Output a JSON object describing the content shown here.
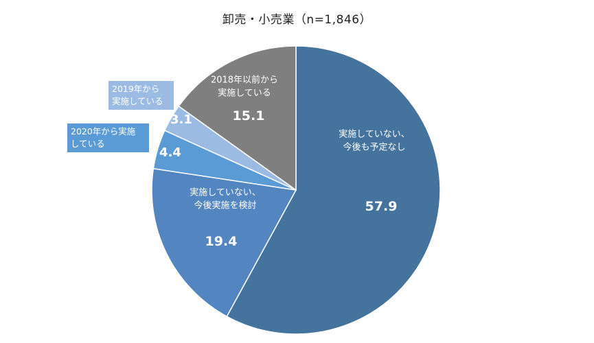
{
  "chart_data": {
    "type": "pie",
    "title": "卸売・小売業（n=1,846）",
    "start": "12 o'clock, clockwise",
    "slices": [
      {
        "label_lines": [
          "実施していない、",
          "今後も予定なし"
        ],
        "value": 57.9,
        "value_label": "57.9",
        "color": "#44739e",
        "label_placement": "inside"
      },
      {
        "label_lines": [
          "実施していない、",
          "今後実施を検討"
        ],
        "value": 19.4,
        "value_label": "19.4",
        "color": "#5386c0",
        "label_placement": "inside"
      },
      {
        "label_lines": [
          "2020年から実施",
          "している"
        ],
        "value": 4.4,
        "value_label": "4.4",
        "color": "#5b9bd5",
        "label_placement": "outside-box"
      },
      {
        "label_lines": [
          "2019年から",
          "実施している"
        ],
        "value": 3.1,
        "value_label": "3.1",
        "color": "#9bbbe3",
        "label_placement": "outside-box"
      },
      {
        "label_lines": [
          "2018年以前から",
          "実施している"
        ],
        "value": 15.1,
        "value_label": "15.1",
        "color": "#7f7f7f",
        "label_placement": "inside"
      }
    ]
  }
}
